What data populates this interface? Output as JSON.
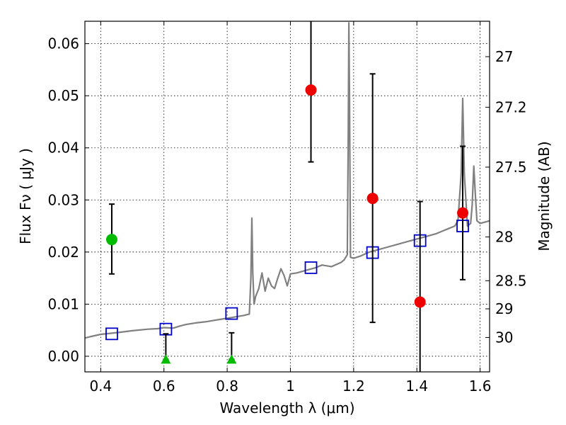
{
  "chart_data": {
    "type": "scatter",
    "xlabel": "Wavelength  λ (μm)",
    "ylabel": "Flux  Fν  ( μJy )",
    "ylabel_right": "Magnitude (AB)",
    "xlim": [
      0.35,
      1.63
    ],
    "ylim": [
      -0.003,
      0.0643
    ],
    "grid": true,
    "x_ticks": [
      0.4,
      0.6,
      0.8,
      1.0,
      1.2,
      1.4,
      1.6
    ],
    "x_tick_labels": [
      "0.4",
      "0.6",
      "0.8",
      "1",
      "1.2",
      "1.4",
      "1.6"
    ],
    "y_ticks": [
      0.0,
      0.01,
      0.02,
      0.03,
      0.04,
      0.05,
      0.06
    ],
    "y_tick_labels": [
      "0.00",
      "0.01",
      "0.02",
      "0.03",
      "0.04",
      "0.05",
      "0.06"
    ],
    "mag_ticks": [
      {
        "label": "27",
        "flux": 0.0575
      },
      {
        "label": "27.2",
        "flux": 0.0478
      },
      {
        "label": "27.5",
        "flux": 0.0363
      },
      {
        "label": "28",
        "flux": 0.0229
      },
      {
        "label": "28.5",
        "flux": 0.0145
      },
      {
        "label": "29",
        "flux": 0.0091
      },
      {
        "label": "30",
        "flux": 0.0036
      }
    ],
    "series": [
      {
        "name": "model spectrum",
        "kind": "line",
        "color": "#808080",
        "points": [
          [
            0.35,
            0.0035
          ],
          [
            0.37,
            0.0038
          ],
          [
            0.4,
            0.0042
          ],
          [
            0.43,
            0.0044
          ],
          [
            0.46,
            0.0046
          ],
          [
            0.5,
            0.0049
          ],
          [
            0.55,
            0.0052
          ],
          [
            0.58,
            0.0053
          ],
          [
            0.6,
            0.0055
          ],
          [
            0.63,
            0.0054
          ],
          [
            0.65,
            0.0058
          ],
          [
            0.67,
            0.0061
          ],
          [
            0.7,
            0.0064
          ],
          [
            0.73,
            0.0066
          ],
          [
            0.76,
            0.0069
          ],
          [
            0.79,
            0.0072
          ],
          [
            0.82,
            0.0075
          ],
          [
            0.85,
            0.0078
          ],
          [
            0.87,
            0.0081
          ],
          [
            0.875,
            0.015
          ],
          [
            0.878,
            0.0265
          ],
          [
            0.881,
            0.016
          ],
          [
            0.885,
            0.01
          ],
          [
            0.89,
            0.0115
          ],
          [
            0.9,
            0.013
          ],
          [
            0.91,
            0.016
          ],
          [
            0.92,
            0.0125
          ],
          [
            0.93,
            0.015
          ],
          [
            0.94,
            0.0135
          ],
          [
            0.95,
            0.013
          ],
          [
            0.96,
            0.015
          ],
          [
            0.97,
            0.0168
          ],
          [
            0.98,
            0.0155
          ],
          [
            0.99,
            0.0135
          ],
          [
            1.0,
            0.0158
          ],
          [
            1.02,
            0.016
          ],
          [
            1.05,
            0.0165
          ],
          [
            1.08,
            0.017
          ],
          [
            1.1,
            0.0175
          ],
          [
            1.13,
            0.0172
          ],
          [
            1.16,
            0.018
          ],
          [
            1.17,
            0.0185
          ],
          [
            1.175,
            0.019
          ],
          [
            1.18,
            0.0195
          ],
          [
            1.183,
            0.042
          ],
          [
            1.185,
            0.064
          ],
          [
            1.187,
            0.05
          ],
          [
            1.19,
            0.019
          ],
          [
            1.2,
            0.0188
          ],
          [
            1.22,
            0.0192
          ],
          [
            1.25,
            0.02
          ],
          [
            1.28,
            0.0205
          ],
          [
            1.31,
            0.021
          ],
          [
            1.34,
            0.0215
          ],
          [
            1.37,
            0.022
          ],
          [
            1.4,
            0.0225
          ],
          [
            1.43,
            0.023
          ],
          [
            1.46,
            0.0235
          ],
          [
            1.48,
            0.024
          ],
          [
            1.5,
            0.0245
          ],
          [
            1.52,
            0.025
          ],
          [
            1.53,
            0.026
          ],
          [
            1.54,
            0.035
          ],
          [
            1.545,
            0.0495
          ],
          [
            1.55,
            0.035
          ],
          [
            1.56,
            0.025
          ],
          [
            1.57,
            0.0255
          ],
          [
            1.575,
            0.029
          ],
          [
            1.58,
            0.0365
          ],
          [
            1.585,
            0.031
          ],
          [
            1.59,
            0.026
          ],
          [
            1.6,
            0.0255
          ],
          [
            1.63,
            0.026
          ]
        ]
      },
      {
        "name": "model photometry",
        "kind": "square",
        "color": "#0000cc",
        "x": [
          0.435,
          0.606,
          0.814,
          1.065,
          1.26,
          1.41,
          1.545
        ],
        "y": [
          0.0043,
          0.0052,
          0.0082,
          0.017,
          0.0199,
          0.0222,
          0.025
        ]
      },
      {
        "name": "green detection",
        "kind": "circle",
        "color": "#00bb00",
        "x": [
          0.435
        ],
        "y": [
          0.0224
        ],
        "yerr_low": [
          0.0158
        ],
        "yerr_high": [
          0.0292
        ]
      },
      {
        "name": "red detections",
        "kind": "circle",
        "color": "#ee0000",
        "x": [
          1.065,
          1.26,
          1.41,
          1.545
        ],
        "y": [
          0.0511,
          0.0303,
          0.0104,
          0.0275
        ],
        "yerr_low": [
          0.0373,
          0.0065,
          -0.0035,
          0.0147
        ],
        "yerr_high": [
          0.065,
          0.0542,
          0.0297,
          0.0403
        ]
      },
      {
        "name": "upper limits",
        "kind": "triangle",
        "color": "#00bb00",
        "x": [
          0.606,
          0.814
        ],
        "y": [
          -0.0006,
          -0.0006
        ],
        "yerr_low": [
          -0.0006,
          -0.0006
        ],
        "yerr_high": [
          0.0043,
          0.0045
        ]
      }
    ]
  }
}
